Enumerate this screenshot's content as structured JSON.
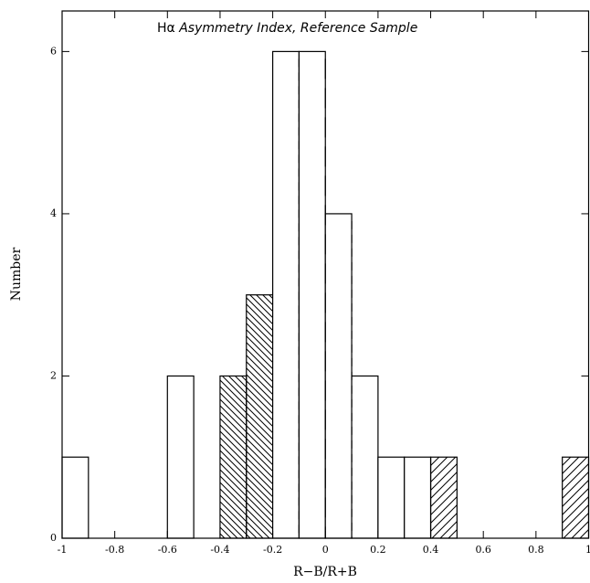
{
  "chart_data": {
    "type": "histogram",
    "title": {
      "prefix": "Hα",
      "text": "Asymmetry Index, Reference Sample"
    },
    "xlabel": "R−B/R+B",
    "ylabel": "Number",
    "bins": [
      -1,
      -0.9,
      -0.8,
      -0.7,
      -0.6,
      -0.5,
      -0.4,
      -0.3,
      -0.2,
      -0.1,
      0,
      0.1,
      0.2,
      0.3,
      0.4,
      0.5,
      0.6,
      0.7,
      0.8,
      0.9,
      1
    ],
    "counts": [
      1,
      0,
      0,
      0,
      2,
      0,
      2,
      3,
      6,
      6,
      4,
      2,
      1,
      1,
      1,
      0,
      0,
      0,
      0,
      1
    ],
    "hatch": [
      null,
      null,
      null,
      null,
      null,
      null,
      "back",
      "back",
      null,
      null,
      null,
      null,
      null,
      null,
      "forward",
      null,
      null,
      null,
      null,
      "forward"
    ],
    "vlines": [
      {
        "x": -0.1,
        "dash": "short"
      },
      {
        "x": 0,
        "dash": "long"
      },
      {
        "x": 0.1,
        "dash": "short"
      }
    ],
    "color": "#000000",
    "xlim": [
      -1,
      1
    ],
    "ylim": [
      0,
      6.5
    ],
    "xticks": [
      -1,
      -0.8,
      -0.6,
      -0.4,
      -0.2,
      0,
      0.2,
      0.4,
      0.6,
      0.8,
      1
    ],
    "yticks": [
      0,
      2,
      4,
      6
    ]
  }
}
